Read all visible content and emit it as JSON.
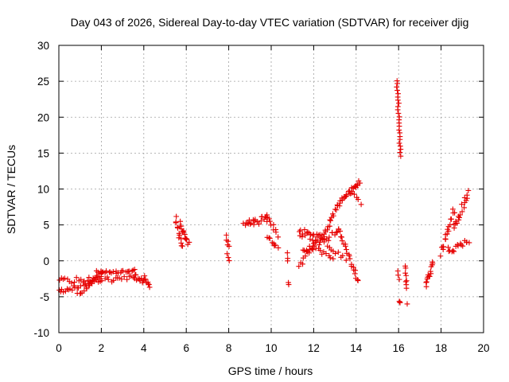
{
  "chart_data": {
    "type": "scatter",
    "title": "Day 043 of 2026, Sidereal Day-to-day VTEC variation (SDTVAR) for receiver djig",
    "xlabel": "GPS time / hours",
    "ylabel": "SDTVAR / TECUs",
    "xlim": [
      0,
      20
    ],
    "ylim": [
      -10,
      30
    ],
    "xticks": [
      0,
      2,
      4,
      6,
      8,
      10,
      12,
      14,
      16,
      18,
      20
    ],
    "yticks": [
      -10,
      -5,
      0,
      5,
      10,
      15,
      20,
      25,
      30
    ],
    "grid": true,
    "marker": "plus",
    "color": "#e60000",
    "segments": [
      {
        "x": [
          0.0,
          4.0
        ],
        "y": [
          -2.8,
          -2.4
        ],
        "n": 40,
        "jitter": 0.4
      },
      {
        "x": [
          0.0,
          1.0
        ],
        "y": [
          -4.2,
          -3.6
        ],
        "n": 14,
        "jitter": 0.3
      },
      {
        "x": [
          0.9,
          2.0
        ],
        "y": [
          -4.8,
          -1.8
        ],
        "n": 16,
        "jitter": 0.3
      },
      {
        "x": [
          1.2,
          2.0
        ],
        "y": [
          -3.4,
          -2.2
        ],
        "n": 10,
        "jitter": 0.2
      },
      {
        "x": [
          1.8,
          3.6
        ],
        "y": [
          -1.6,
          -1.4
        ],
        "n": 24,
        "jitter": 0.25
      },
      {
        "x": [
          3.6,
          3.9
        ],
        "y": [
          -1.9,
          -2.9
        ],
        "n": 6,
        "jitter": 0.2
      },
      {
        "x": [
          4.0,
          4.3
        ],
        "y": [
          -2.3,
          -3.4
        ],
        "n": 8,
        "jitter": 0.3
      },
      {
        "x": [
          5.5,
          5.8
        ],
        "y": [
          6.0,
          1.8
        ],
        "n": 12,
        "jitter": 0.3
      },
      {
        "x": [
          5.7,
          6.1
        ],
        "y": [
          5.3,
          2.3
        ],
        "n": 14,
        "jitter": 0.4
      },
      {
        "x": [
          7.9,
          8.0
        ],
        "y": [
          3.4,
          2.0
        ],
        "n": 5,
        "jitter": 0.3
      },
      {
        "x": [
          7.9,
          8.0
        ],
        "y": [
          0.8,
          0.0
        ],
        "n": 3,
        "jitter": 0.2
      },
      {
        "x": [
          8.7,
          9.8
        ],
        "y": [
          5.2,
          5.8
        ],
        "n": 22,
        "jitter": 0.5
      },
      {
        "x": [
          9.8,
          10.3
        ],
        "y": [
          6.5,
          3.5
        ],
        "n": 10,
        "jitter": 0.2
      },
      {
        "x": [
          9.8,
          10.3
        ],
        "y": [
          3.4,
          1.8
        ],
        "n": 8,
        "jitter": 0.2
      },
      {
        "x": [
          10.8,
          10.8
        ],
        "y": [
          1.0,
          0.0
        ],
        "n": 3,
        "jitter": 0.2
      },
      {
        "x": [
          10.8,
          10.8
        ],
        "y": [
          -3.0,
          -3.4
        ],
        "n": 2,
        "jitter": 0.1
      },
      {
        "x": [
          11.3,
          12.5
        ],
        "y": [
          4.0,
          3.0
        ],
        "n": 24,
        "jitter": 0.6
      },
      {
        "x": [
          11.3,
          12.0
        ],
        "y": [
          -1.0,
          2.5
        ],
        "n": 10,
        "jitter": 0.4
      },
      {
        "x": [
          11.5,
          13.2
        ],
        "y": [
          1.0,
          4.3
        ],
        "n": 24,
        "jitter": 0.5
      },
      {
        "x": [
          12.0,
          12.9
        ],
        "y": [
          2.0,
          0.2
        ],
        "n": 10,
        "jitter": 0.3
      },
      {
        "x": [
          12.5,
          13.2
        ],
        "y": [
          3.6,
          8.0
        ],
        "n": 16,
        "jitter": 0.4
      },
      {
        "x": [
          13.2,
          14.2
        ],
        "y": [
          8.2,
          11.0
        ],
        "n": 22,
        "jitter": 0.3
      },
      {
        "x": [
          13.7,
          14.2
        ],
        "y": [
          9.8,
          8.0
        ],
        "n": 6,
        "jitter": 0.2
      },
      {
        "x": [
          13.2,
          14.1
        ],
        "y": [
          4.3,
          -3.0
        ],
        "n": 22,
        "jitter": 0.3
      },
      {
        "x": [
          12.5,
          13.5
        ],
        "y": [
          2.5,
          0.2
        ],
        "n": 10,
        "jitter": 0.3
      },
      {
        "x": [
          15.92,
          16.1
        ],
        "y": [
          25.1,
          14.6
        ],
        "n": 24,
        "jitter": 0.05
      },
      {
        "x": [
          16.0,
          16.0
        ],
        "y": [
          -1.4,
          -2.6
        ],
        "n": 3,
        "jitter": 0.1
      },
      {
        "x": [
          16.0,
          16.1
        ],
        "y": [
          -5.6,
          -5.9
        ],
        "n": 3,
        "jitter": 0.1
      },
      {
        "x": [
          16.3,
          16.4
        ],
        "y": [
          -0.8,
          -4.0
        ],
        "n": 8,
        "jitter": 0.3
      },
      {
        "x": [
          16.4,
          16.4
        ],
        "y": [
          -6.0,
          -6.0
        ],
        "n": 1,
        "jitter": 0.0
      },
      {
        "x": [
          17.3,
          17.6
        ],
        "y": [
          -3.6,
          -0.3
        ],
        "n": 14,
        "jitter": 0.4
      },
      {
        "x": [
          18.0,
          18.6
        ],
        "y": [
          1.2,
          7.0
        ],
        "n": 18,
        "jitter": 0.6
      },
      {
        "x": [
          18.3,
          19.3
        ],
        "y": [
          1.4,
          2.6
        ],
        "n": 16,
        "jitter": 0.5
      },
      {
        "x": [
          18.6,
          19.3
        ],
        "y": [
          4.5,
          9.5
        ],
        "n": 18,
        "jitter": 0.6
      }
    ]
  }
}
